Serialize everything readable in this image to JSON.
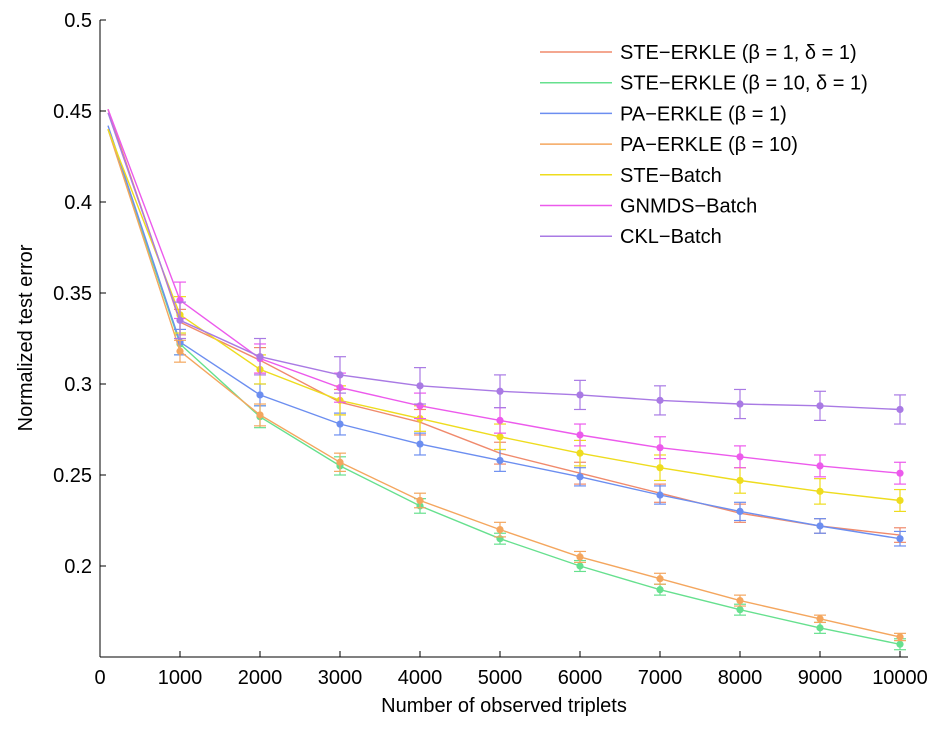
{
  "chart_data": {
    "type": "line",
    "title": "",
    "xlabel": "Number of observed triplets",
    "ylabel": "Normalized test error",
    "xlim": [
      0,
      10000
    ],
    "ylim": [
      0.15,
      0.5
    ],
    "xticks": [
      0,
      1000,
      2000,
      3000,
      4000,
      5000,
      6000,
      7000,
      8000,
      9000,
      10000
    ],
    "xtick_labels": [
      "0",
      "1000",
      "2000",
      "3000",
      "4000",
      "5000",
      "6000",
      "7000",
      "8000",
      "9000",
      "10000"
    ],
    "yticks": [
      0.2,
      0.25,
      0.3,
      0.35,
      0.4,
      0.45,
      0.5
    ],
    "ytick_labels": [
      "0.2",
      "0.25",
      "0.3",
      "0.35",
      "0.4",
      "0.45",
      "0.5"
    ],
    "grid": false,
    "legend_position": "top-right",
    "x": [
      100,
      1000,
      2000,
      3000,
      4000,
      5000,
      6000,
      7000,
      8000,
      9000,
      10000
    ],
    "series": [
      {
        "name": "STE−ERKLE (β = 1, δ = 1)",
        "color": "#f08a6c",
        "values": [
          0.451,
          0.334,
          0.313,
          0.29,
          0.279,
          0.262,
          0.251,
          0.24,
          0.229,
          0.222,
          0.217
        ],
        "errors": [
          0.0,
          0.007,
          0.007,
          0.007,
          0.007,
          0.006,
          0.006,
          0.005,
          0.005,
          0.004,
          0.004
        ],
        "markers": false
      },
      {
        "name": "STE−ERKLE (β = 10, δ = 1)",
        "color": "#66e08e",
        "values": [
          0.44,
          0.322,
          0.282,
          0.255,
          0.233,
          0.215,
          0.2,
          0.187,
          0.176,
          0.166,
          0.157
        ],
        "errors": [
          0.0,
          0.006,
          0.006,
          0.005,
          0.004,
          0.003,
          0.003,
          0.003,
          0.003,
          0.003,
          0.003
        ],
        "markers": true
      },
      {
        "name": "PA−ERKLE (β = 1)",
        "color": "#6c8ef0",
        "values": [
          0.442,
          0.323,
          0.294,
          0.278,
          0.267,
          0.258,
          0.249,
          0.239,
          0.23,
          0.222,
          0.215
        ],
        "errors": [
          0.0,
          0.007,
          0.006,
          0.006,
          0.006,
          0.006,
          0.005,
          0.005,
          0.005,
          0.004,
          0.004
        ],
        "markers": true
      },
      {
        "name": "PA−ERKLE (β = 10)",
        "color": "#f4a65e",
        "values": [
          0.44,
          0.318,
          0.283,
          0.257,
          0.236,
          0.22,
          0.205,
          0.193,
          0.181,
          0.171,
          0.161
        ],
        "errors": [
          0.0,
          0.006,
          0.006,
          0.005,
          0.004,
          0.004,
          0.003,
          0.003,
          0.003,
          0.002,
          0.002
        ],
        "markers": true
      },
      {
        "name": "STE−Batch",
        "color": "#eedc1e",
        "values": [
          0.44,
          0.338,
          0.308,
          0.291,
          0.281,
          0.271,
          0.262,
          0.254,
          0.247,
          0.241,
          0.236
        ],
        "errors": [
          0.0,
          0.01,
          0.008,
          0.008,
          0.007,
          0.007,
          0.007,
          0.007,
          0.007,
          0.007,
          0.006
        ],
        "markers": true
      },
      {
        "name": "GNMDS−Batch",
        "color": "#ec5aec",
        "values": [
          0.451,
          0.346,
          0.314,
          0.298,
          0.288,
          0.28,
          0.272,
          0.265,
          0.26,
          0.255,
          0.251
        ],
        "errors": [
          0.0,
          0.01,
          0.008,
          0.008,
          0.007,
          0.007,
          0.006,
          0.006,
          0.006,
          0.006,
          0.006
        ],
        "markers": true
      },
      {
        "name": "CKL−Batch",
        "color": "#a97ae4",
        "values": [
          0.449,
          0.335,
          0.315,
          0.305,
          0.299,
          0.296,
          0.294,
          0.291,
          0.289,
          0.288,
          0.286
        ],
        "errors": [
          0.0,
          0.01,
          0.01,
          0.01,
          0.01,
          0.009,
          0.008,
          0.008,
          0.008,
          0.008,
          0.008
        ],
        "markers": true
      }
    ]
  }
}
